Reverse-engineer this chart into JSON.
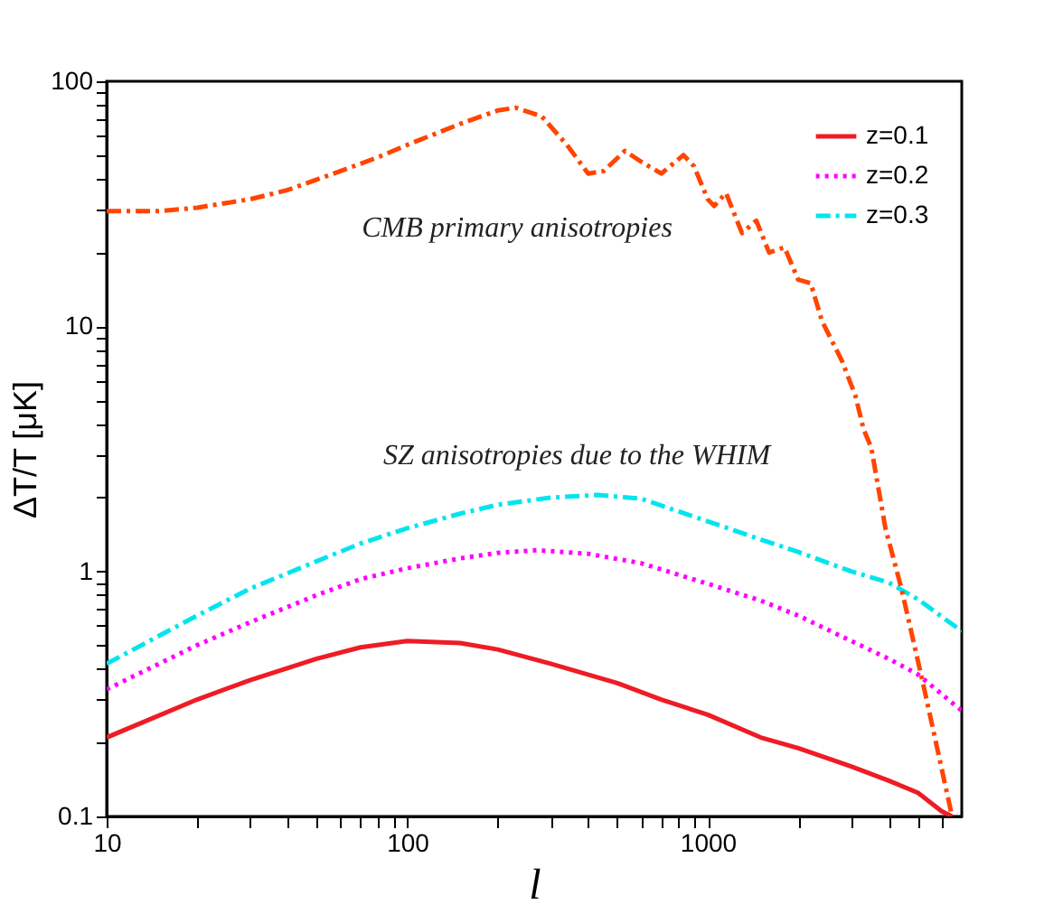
{
  "chart_data": {
    "type": "line",
    "xlabel": "l",
    "ylabel": "ΔT/T [μK]",
    "log": "xy",
    "grid": false,
    "legend": "top right",
    "xlim": [
      10,
      7000
    ],
    "ylim": [
      0.1,
      100
    ],
    "xticks": [
      10,
      {
        "value": 20,
        "label": null
      },
      {
        "value": 30,
        "label": null
      },
      {
        "value": 40,
        "label": null
      },
      {
        "value": 50,
        "label": null
      },
      {
        "value": 60,
        "label": null
      },
      {
        "value": 70,
        "label": null
      },
      {
        "value": 80,
        "label": null
      },
      {
        "value": 90,
        "label": null
      },
      100,
      {
        "value": 200,
        "label": null
      },
      {
        "value": 300,
        "label": null
      },
      {
        "value": 400,
        "label": null
      },
      {
        "value": 500,
        "label": null
      },
      {
        "value": 600,
        "label": null
      },
      {
        "value": 700,
        "label": null
      },
      {
        "value": 800,
        "label": null
      },
      {
        "value": 900,
        "label": null
      },
      1000,
      {
        "value": 2000,
        "label": null
      },
      {
        "value": 3000,
        "label": null
      },
      {
        "value": 4000,
        "label": null
      },
      {
        "value": 5000,
        "label": null
      },
      {
        "value": 6000,
        "label": null
      }
    ],
    "yticks": [
      0.1,
      {
        "value": 0.2,
        "label": null
      },
      {
        "value": 0.3,
        "label": null
      },
      {
        "value": 0.4,
        "label": null
      },
      {
        "value": 0.5,
        "label": null
      },
      {
        "value": 0.6,
        "label": null
      },
      {
        "value": 0.7,
        "label": null
      },
      {
        "value": 0.8,
        "label": null
      },
      {
        "value": 0.9,
        "label": null
      },
      1,
      {
        "value": 2,
        "label": null
      },
      {
        "value": 3,
        "label": null
      },
      {
        "value": 4,
        "label": null
      },
      {
        "value": 5,
        "label": null
      },
      {
        "value": 6,
        "label": null
      },
      {
        "value": 7,
        "label": null
      },
      {
        "value": 8,
        "label": null
      },
      {
        "value": 9,
        "label": null
      },
      10,
      {
        "value": 20,
        "label": null
      },
      {
        "value": 30,
        "label": null
      },
      {
        "value": 40,
        "label": null
      },
      {
        "value": 50,
        "label": null
      },
      {
        "value": 60,
        "label": null
      },
      {
        "value": 70,
        "label": null
      },
      {
        "value": 80,
        "label": null
      },
      {
        "value": 90,
        "label": null
      },
      100
    ],
    "annotations": [
      "CMB primary anisotropies",
      "SZ anisotropies due to the WHIM"
    ],
    "series": [
      {
        "name": "z=0.1",
        "color": "#ee1c25",
        "line_style": "solid",
        "x": [
          10,
          20,
          30,
          50,
          70,
          100,
          150,
          200,
          300,
          500,
          700,
          1000,
          1500,
          2000,
          3000,
          4000,
          5000,
          6000,
          6500
        ],
        "values": [
          0.21,
          0.3,
          0.36,
          0.44,
          0.49,
          0.52,
          0.51,
          0.48,
          0.42,
          0.35,
          0.3,
          0.26,
          0.21,
          0.19,
          0.16,
          0.14,
          0.125,
          0.105,
          0.1
        ]
      },
      {
        "name": "z=0.2",
        "color": "#ff00ff",
        "line_style": "dotted",
        "x": [
          10,
          20,
          30,
          50,
          70,
          100,
          150,
          200,
          270,
          400,
          600,
          1000,
          1500,
          2000,
          3000,
          4000,
          5000,
          7000
        ],
        "values": [
          0.33,
          0.5,
          0.62,
          0.8,
          0.93,
          1.03,
          1.13,
          1.19,
          1.22,
          1.18,
          1.08,
          0.89,
          0.76,
          0.66,
          0.52,
          0.44,
          0.38,
          0.27
        ]
      },
      {
        "name": "z=0.3",
        "color": "#00e5ee",
        "line_style": "dashed",
        "x": [
          10,
          20,
          30,
          50,
          70,
          100,
          150,
          200,
          300,
          430,
          600,
          1000,
          1500,
          2000,
          3000,
          4000,
          5000,
          7000
        ],
        "values": [
          0.42,
          0.66,
          0.85,
          1.1,
          1.3,
          1.5,
          1.72,
          1.87,
          2.0,
          2.05,
          1.98,
          1.6,
          1.35,
          1.2,
          1.0,
          0.9,
          0.77,
          0.57
        ]
      },
      {
        "color": "#ff4500",
        "line_style": "dashed",
        "x": [
          10,
          15,
          20,
          30,
          40,
          60,
          80,
          100,
          150,
          200,
          230,
          280,
          340,
          400,
          450,
          530,
          600,
          700,
          830,
          900,
          1000,
          1050,
          1150,
          1300,
          1450,
          1600,
          1800,
          2000,
          2200,
          2400,
          2800,
          3100,
          3300,
          3500,
          3900,
          4400,
          5200,
          6500
        ],
        "values": [
          29.5,
          29.5,
          30.5,
          33,
          36,
          43,
          49,
          55,
          67,
          76,
          78,
          72,
          55,
          42,
          43,
          52,
          47,
          42,
          50,
          45,
          33,
          31,
          35,
          24,
          27,
          20,
          21,
          15.5,
          15,
          10.5,
          7.2,
          5.2,
          3.8,
          3.2,
          1.5,
          0.86,
          0.35,
          0.1
        ]
      }
    ]
  }
}
